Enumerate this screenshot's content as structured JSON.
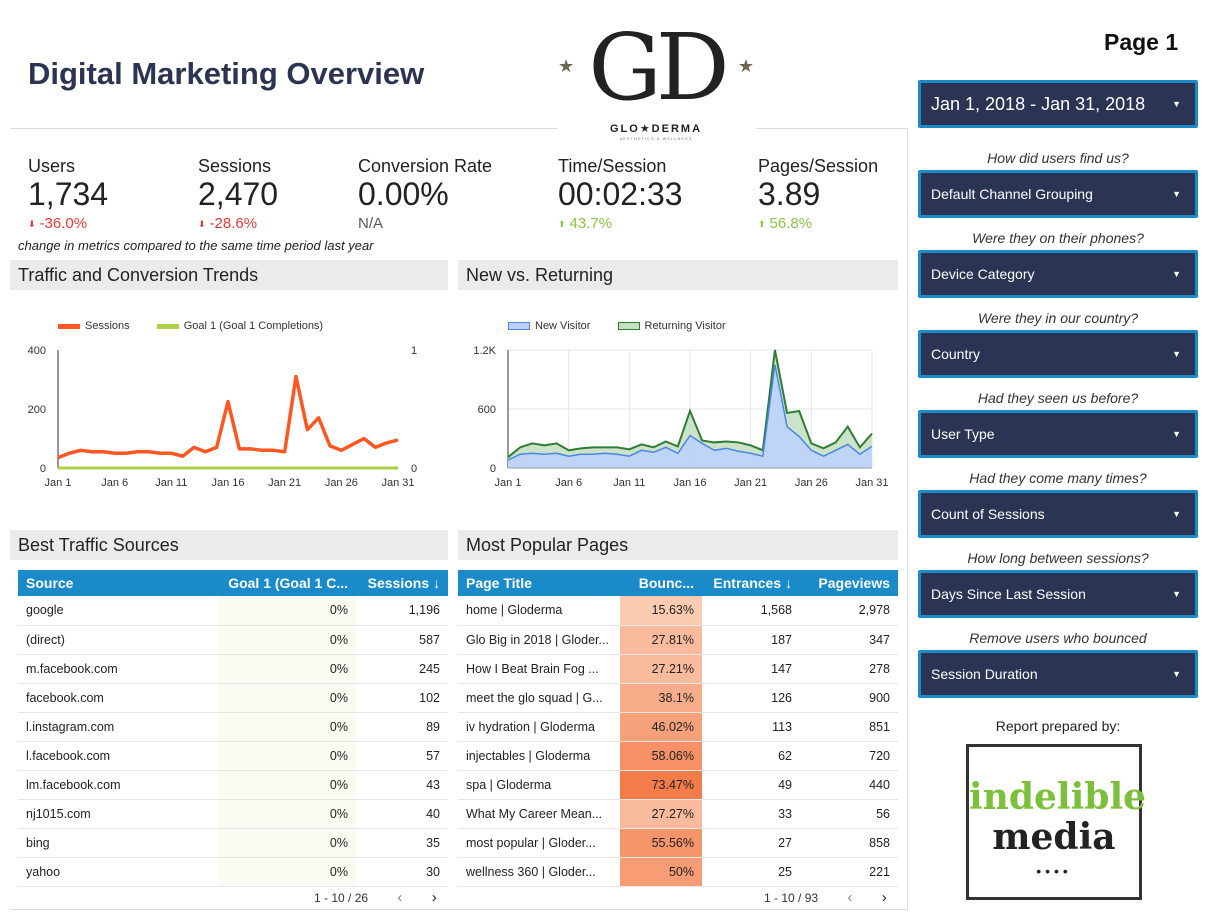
{
  "header": {
    "title": "Digital Marketing Overview",
    "page_label": "Page 1"
  },
  "logo": {
    "monogram": "GD",
    "brand": "GLO★DERMA",
    "tagline": "AESTHETICS & WELLNESS",
    "star": "★"
  },
  "kpis": [
    {
      "label": "Users",
      "value": "1,734",
      "change": "-36.0%",
      "direction": "down"
    },
    {
      "label": "Sessions",
      "value": "2,470",
      "change": "-28.6%",
      "direction": "down"
    },
    {
      "label": "Conversion Rate",
      "value": "0.00%",
      "change": "N/A",
      "direction": "none"
    },
    {
      "label": "Time/Session",
      "value": "00:02:33",
      "change": "43.7%",
      "direction": "up"
    },
    {
      "label": "Pages/Session",
      "value": "3.89",
      "change": "56.8%",
      "direction": "up"
    }
  ],
  "kpi_note": "change in metrics compared to the same time period last year",
  "colors": {
    "negative": "#e53935",
    "positive": "#8bc34a",
    "sessions_line": "#ff5722",
    "goal_line": "#a9d046",
    "new_visitor": "#4a86e8",
    "returning_visitor": "#2e7d32",
    "table_header": "#1a8ac9",
    "dropdown_bg": "#2c3454",
    "dropdown_border": "#1a8ac9"
  },
  "traffic_panel": {
    "title": "Traffic and Conversion Trends",
    "legend": [
      "Sessions",
      "Goal 1 (Goal 1 Completions)"
    ]
  },
  "newret_panel": {
    "title": "New vs. Returning",
    "legend": [
      "New Visitor",
      "Returning Visitor"
    ]
  },
  "chart_data": [
    {
      "type": "line",
      "x_ticks": [
        "Jan 1",
        "Jan 6",
        "Jan 11",
        "Jan 16",
        "Jan 21",
        "Jan 26",
        "Jan 31"
      ],
      "y_left_ticks": [
        "0",
        "200",
        "400"
      ],
      "y_right_ticks": [
        "0",
        "1"
      ],
      "ylim": [
        0,
        400
      ],
      "y2lim": [
        0,
        1
      ],
      "series": [
        {
          "name": "Sessions",
          "axis": "left",
          "values": [
            35,
            50,
            60,
            55,
            55,
            50,
            50,
            55,
            55,
            50,
            50,
            40,
            70,
            55,
            70,
            225,
            65,
            65,
            60,
            60,
            55,
            310,
            130,
            170,
            75,
            60,
            80,
            100,
            70,
            85,
            95
          ]
        },
        {
          "name": "Goal 1 (Goal 1 Completions)",
          "axis": "right",
          "values": [
            0,
            0,
            0,
            0,
            0,
            0,
            0,
            0,
            0,
            0,
            0,
            0,
            0,
            0,
            0,
            0,
            0,
            0,
            0,
            0,
            0,
            0,
            0,
            0,
            0,
            0,
            0,
            0,
            0,
            0,
            0
          ]
        }
      ]
    },
    {
      "type": "area",
      "x_ticks": [
        "Jan 1",
        "Jan 6",
        "Jan 11",
        "Jan 16",
        "Jan 21",
        "Jan 26",
        "Jan 31"
      ],
      "y_ticks": [
        "0",
        "600",
        "1.2K"
      ],
      "ylim": [
        0,
        1200
      ],
      "series": [
        {
          "name": "New Visitor",
          "values": [
            80,
            140,
            150,
            140,
            150,
            120,
            140,
            140,
            150,
            140,
            120,
            180,
            160,
            210,
            150,
            330,
            250,
            180,
            200,
            170,
            150,
            120,
            1050,
            420,
            320,
            180,
            120,
            180,
            240,
            140,
            220
          ]
        },
        {
          "name": "Returning Visitor",
          "values": [
            110,
            210,
            250,
            230,
            250,
            180,
            200,
            210,
            210,
            210,
            190,
            240,
            210,
            270,
            220,
            580,
            280,
            260,
            270,
            260,
            230,
            180,
            1200,
            560,
            580,
            250,
            200,
            260,
            420,
            210,
            350
          ]
        }
      ]
    }
  ],
  "sources_panel": {
    "title": "Best Traffic Sources",
    "columns": [
      "Source",
      "Goal 1 (Goal 1 C...",
      "Sessions ↓"
    ],
    "rows": [
      [
        "google",
        "0%",
        "1,196"
      ],
      [
        "(direct)",
        "0%",
        "587"
      ],
      [
        "m.facebook.com",
        "0%",
        "245"
      ],
      [
        "facebook.com",
        "0%",
        "102"
      ],
      [
        "l.instagram.com",
        "0%",
        "89"
      ],
      [
        "l.facebook.com",
        "0%",
        "57"
      ],
      [
        "lm.facebook.com",
        "0%",
        "43"
      ],
      [
        "nj1015.com",
        "0%",
        "40"
      ],
      [
        "bing",
        "0%",
        "35"
      ],
      [
        "yahoo",
        "0%",
        "30"
      ]
    ],
    "pager": "1 - 10 / 26"
  },
  "pages_panel": {
    "title": "Most Popular Pages",
    "columns": [
      "Page Title",
      "Bounc...",
      "Entrances ↓",
      "Pageviews"
    ],
    "rows": [
      [
        "home | Gloderma",
        "15.63%",
        "1,568",
        "2,978"
      ],
      [
        "Glo Big in 2018 | Gloder...",
        "27.81%",
        "187",
        "347"
      ],
      [
        "How I Beat Brain Fog ...",
        "27.21%",
        "147",
        "278"
      ],
      [
        "meet the glo squad | G...",
        "38.1%",
        "126",
        "900"
      ],
      [
        "iv hydration | Gloderma",
        "46.02%",
        "113",
        "851"
      ],
      [
        "injectables | Gloderma",
        "58.06%",
        "62",
        "720"
      ],
      [
        "spa | Gloderma",
        "73.47%",
        "49",
        "440"
      ],
      [
        "What My Career Mean...",
        "27.27%",
        "33",
        "56"
      ],
      [
        "most popular | Gloder...",
        "55.56%",
        "27",
        "858"
      ],
      [
        "wellness 360 | Gloder...",
        "50%",
        "25",
        "221"
      ]
    ],
    "bounce_fractions": [
      0.1563,
      0.2781,
      0.2721,
      0.381,
      0.4602,
      0.5806,
      0.7347,
      0.2727,
      0.5556,
      0.5
    ],
    "pager": "1 - 10 / 93"
  },
  "sidebar": {
    "date_range": "Jan 1, 2018 - Jan 31, 2018",
    "filters": [
      {
        "question": "How did users find us?",
        "control": "Default Channel Grouping"
      },
      {
        "question": "Were they on their phones?",
        "control": "Device Category"
      },
      {
        "question": "Were they in our country?",
        "control": "Country"
      },
      {
        "question": "Had they seen us before?",
        "control": "User Type"
      },
      {
        "question": "Had they come many times?",
        "control": "Count of Sessions"
      },
      {
        "question": "How long between sessions?",
        "control": "Days Since Last Session"
      },
      {
        "question": "Remove users who bounced",
        "control": "Session Duration"
      }
    ],
    "prepared_by": "Report prepared by:",
    "prepared_logo": {
      "line1": "indelible",
      "line2": "media",
      "dots": "••••"
    }
  },
  "icons": {
    "caret": "▼",
    "arrow_down": "⬇",
    "arrow_up": "⬆",
    "prev": "‹",
    "next": "›"
  }
}
